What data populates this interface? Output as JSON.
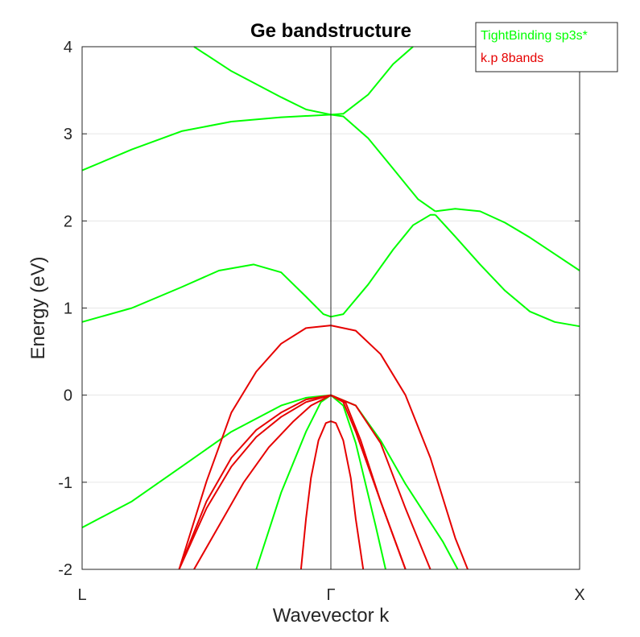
{
  "chart_data": {
    "type": "line",
    "title": "Ge bandstructure",
    "xlabel": "Wavevector k",
    "ylabel": "Energy (eV)",
    "xlim": [
      -1,
      1
    ],
    "ylim": [
      -2,
      4
    ],
    "x_ticks": [
      {
        "value": -1,
        "label": "L"
      },
      {
        "value": 0,
        "label": "Γ"
      },
      {
        "value": 1,
        "label": "X"
      }
    ],
    "y_ticks": [
      -2,
      -1,
      0,
      1,
      2,
      3,
      4
    ],
    "y_tick_labels": [
      "-2",
      "-1",
      "0",
      "1",
      "2",
      "3",
      "4"
    ],
    "grid": "horizontal",
    "vertical_line_at": 0,
    "legend": {
      "position": "top-right",
      "entries": [
        {
          "label": "TightBinding sp3s*",
          "color": "#00ff00"
        },
        {
          "label": "k.p 8bands",
          "color": "#e60000"
        }
      ]
    },
    "series": [
      {
        "group": "TightBinding sp3s*",
        "color": "#00ff00",
        "points": [
          [
            -0.55,
            4.0
          ],
          [
            -0.4,
            3.72
          ],
          [
            -0.2,
            3.42
          ],
          [
            -0.1,
            3.28
          ],
          [
            0,
            3.22
          ],
          [
            0.05,
            3.23
          ],
          [
            0.15,
            3.45
          ],
          [
            0.25,
            3.8
          ],
          [
            0.33,
            4.0
          ]
        ]
      },
      {
        "group": "TightBinding sp3s*",
        "color": "#00ff00",
        "points": [
          [
            -1,
            2.58
          ],
          [
            -0.8,
            2.82
          ],
          [
            -0.6,
            3.03
          ],
          [
            -0.4,
            3.14
          ],
          [
            -0.2,
            3.19
          ],
          [
            0,
            3.22
          ],
          [
            0.05,
            3.2
          ],
          [
            0.15,
            2.95
          ],
          [
            0.25,
            2.6
          ],
          [
            0.35,
            2.25
          ],
          [
            0.42,
            2.11
          ]
        ]
      },
      {
        "group": "TightBinding sp3s*",
        "color": "#00ff00",
        "points": [
          [
            0.42,
            2.11
          ],
          [
            0.5,
            2.14
          ],
          [
            0.6,
            2.11
          ],
          [
            0.7,
            1.98
          ],
          [
            0.8,
            1.81
          ],
          [
            0.9,
            1.62
          ],
          [
            1.0,
            1.43
          ]
        ]
      },
      {
        "group": "TightBinding sp3s*",
        "color": "#00ff00",
        "points": [
          [
            -1,
            0.84
          ],
          [
            -0.8,
            1.0
          ],
          [
            -0.6,
            1.24
          ],
          [
            -0.45,
            1.43
          ],
          [
            -0.31,
            1.5
          ],
          [
            -0.2,
            1.41
          ],
          [
            -0.1,
            1.13
          ],
          [
            -0.03,
            0.93
          ],
          [
            0,
            0.9
          ],
          [
            0.05,
            0.93
          ],
          [
            0.15,
            1.27
          ],
          [
            0.25,
            1.67
          ],
          [
            0.33,
            1.95
          ],
          [
            0.4,
            2.07
          ],
          [
            0.42,
            2.07
          ]
        ]
      },
      {
        "group": "TightBinding sp3s*",
        "color": "#00ff00",
        "points": [
          [
            0.42,
            2.07
          ],
          [
            0.5,
            1.82
          ],
          [
            0.6,
            1.5
          ],
          [
            0.7,
            1.2
          ],
          [
            0.8,
            0.96
          ],
          [
            0.9,
            0.84
          ],
          [
            1.0,
            0.79
          ]
        ]
      },
      {
        "group": "TightBinding sp3s*",
        "color": "#00ff00",
        "points": [
          [
            -1,
            -1.52
          ],
          [
            -0.8,
            -1.22
          ],
          [
            -0.6,
            -0.82
          ],
          [
            -0.4,
            -0.42
          ],
          [
            -0.2,
            -0.12
          ],
          [
            -0.1,
            -0.03
          ],
          [
            0,
            0
          ],
          [
            0.1,
            -0.12
          ],
          [
            0.2,
            -0.52
          ],
          [
            0.3,
            -1.02
          ],
          [
            0.45,
            -1.68
          ],
          [
            0.51,
            -2.0
          ]
        ]
      },
      {
        "group": "TightBinding sp3s*",
        "color": "#00ff00",
        "points": [
          [
            -0.3,
            -2.0
          ],
          [
            -0.2,
            -1.12
          ],
          [
            -0.1,
            -0.42
          ],
          [
            -0.04,
            -0.08
          ],
          [
            0,
            0
          ],
          [
            0.05,
            -0.12
          ],
          [
            0.1,
            -0.55
          ],
          [
            0.18,
            -1.5
          ],
          [
            0.22,
            -2.0
          ]
        ]
      },
      {
        "group": "k.p 8bands",
        "color": "#e60000",
        "points": [
          [
            -0.61,
            -2.0
          ],
          [
            -0.5,
            -1.3
          ],
          [
            -0.4,
            -0.82
          ],
          [
            -0.3,
            -0.48
          ],
          [
            -0.2,
            -0.25
          ],
          [
            -0.1,
            -0.08
          ],
          [
            0,
            0
          ],
          [
            0.1,
            -0.12
          ],
          [
            0.2,
            -0.55
          ],
          [
            0.3,
            -1.3
          ],
          [
            0.4,
            -2.0
          ]
        ]
      },
      {
        "group": "k.p 8bands",
        "color": "#e60000",
        "points": [
          [
            -0.55,
            -2.0
          ],
          [
            -0.45,
            -1.5
          ],
          [
            -0.35,
            -1.0
          ],
          [
            -0.25,
            -0.6
          ],
          [
            -0.15,
            -0.3
          ],
          [
            -0.08,
            -0.12
          ],
          [
            0,
            0
          ],
          [
            0.06,
            -0.09
          ],
          [
            0.12,
            -0.52
          ],
          [
            0.2,
            -1.22
          ],
          [
            0.3,
            -2.0
          ]
        ]
      },
      {
        "group": "k.p 8bands",
        "color": "#e60000",
        "points": [
          [
            -0.61,
            -2.0
          ],
          [
            -0.5,
            -1.22
          ],
          [
            -0.4,
            -0.72
          ],
          [
            -0.3,
            -0.4
          ],
          [
            -0.2,
            -0.2
          ],
          [
            -0.1,
            -0.05
          ],
          [
            0,
            0
          ],
          [
            0.05,
            -0.08
          ],
          [
            0.1,
            -0.42
          ],
          [
            0.2,
            -1.22
          ],
          [
            0.3,
            -2.0
          ]
        ]
      },
      {
        "group": "k.p 8bands",
        "color": "#e60000",
        "points": [
          [
            -0.12,
            -2.0
          ],
          [
            -0.1,
            -1.42
          ],
          [
            -0.08,
            -0.95
          ],
          [
            -0.05,
            -0.52
          ],
          [
            -0.02,
            -0.32
          ],
          [
            0,
            -0.3
          ],
          [
            0.02,
            -0.32
          ],
          [
            0.05,
            -0.52
          ],
          [
            0.08,
            -0.95
          ],
          [
            0.1,
            -1.42
          ],
          [
            0.13,
            -2.0
          ]
        ]
      },
      {
        "group": "k.p 8bands",
        "color": "#e60000",
        "points": [
          [
            -0.61,
            -2.0
          ],
          [
            -0.5,
            -0.99
          ],
          [
            -0.4,
            -0.2
          ],
          [
            -0.3,
            0.27
          ],
          [
            -0.2,
            0.59
          ],
          [
            -0.1,
            0.77
          ],
          [
            0,
            0.8
          ],
          [
            0.1,
            0.74
          ],
          [
            0.2,
            0.47
          ],
          [
            0.3,
            0.0
          ],
          [
            0.4,
            -0.72
          ],
          [
            0.5,
            -1.64
          ],
          [
            0.55,
            -2.0
          ]
        ]
      }
    ]
  }
}
